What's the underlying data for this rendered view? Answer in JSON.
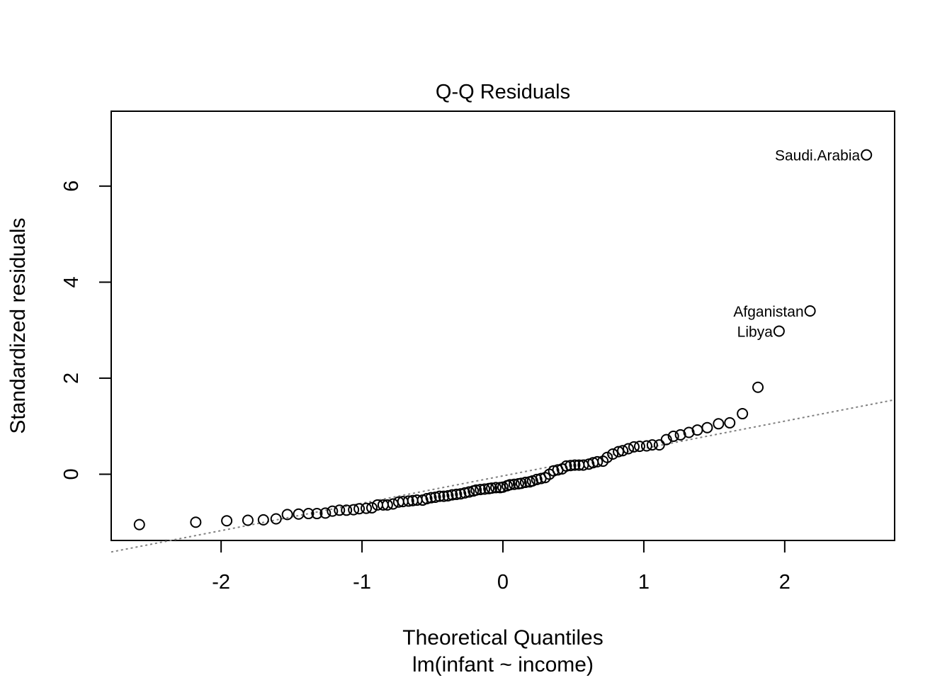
{
  "chart_data": {
    "type": "scatter",
    "title": "Q-Q Residuals",
    "xlabel": "Theoretical Quantiles",
    "subtitle": "lm(infant ~ income)",
    "ylabel": "Standardized residuals",
    "xlim": [
      -2.78,
      2.78
    ],
    "ylim": [
      -1.38,
      7.56
    ],
    "x_ticks": [
      -2,
      -1,
      0,
      1,
      2
    ],
    "y_ticks": [
      0,
      2,
      4,
      6
    ],
    "reference_line": {
      "style": "dotted",
      "color": "#808080",
      "x": [
        -2.78,
        2.78
      ],
      "y": [
        -1.62,
        1.55
      ]
    },
    "points": [
      [
        -2.58,
        -1.05
      ],
      [
        -2.18,
        -1.0
      ],
      [
        -1.96,
        -0.97
      ],
      [
        -1.81,
        -0.96
      ],
      [
        -1.7,
        -0.95
      ],
      [
        -1.61,
        -0.93
      ],
      [
        -1.53,
        -0.84
      ],
      [
        -1.45,
        -0.83
      ],
      [
        -1.38,
        -0.82
      ],
      [
        -1.32,
        -0.82
      ],
      [
        -1.26,
        -0.81
      ],
      [
        -1.21,
        -0.77
      ],
      [
        -1.16,
        -0.75
      ],
      [
        -1.11,
        -0.75
      ],
      [
        -1.06,
        -0.74
      ],
      [
        -1.02,
        -0.72
      ],
      [
        -0.97,
        -0.71
      ],
      [
        -0.93,
        -0.7
      ],
      [
        -0.89,
        -0.64
      ],
      [
        -0.85,
        -0.64
      ],
      [
        -0.82,
        -0.64
      ],
      [
        -0.78,
        -0.62
      ],
      [
        -0.74,
        -0.58
      ],
      [
        -0.71,
        -0.57
      ],
      [
        -0.67,
        -0.56
      ],
      [
        -0.64,
        -0.55
      ],
      [
        -0.61,
        -0.54
      ],
      [
        -0.57,
        -0.54
      ],
      [
        -0.54,
        -0.51
      ],
      [
        -0.51,
        -0.49
      ],
      [
        -0.48,
        -0.48
      ],
      [
        -0.45,
        -0.46
      ],
      [
        -0.42,
        -0.46
      ],
      [
        -0.39,
        -0.45
      ],
      [
        -0.36,
        -0.43
      ],
      [
        -0.33,
        -0.42
      ],
      [
        -0.3,
        -0.41
      ],
      [
        -0.27,
        -0.39
      ],
      [
        -0.24,
        -0.37
      ],
      [
        -0.21,
        -0.35
      ],
      [
        -0.19,
        -0.33
      ],
      [
        -0.16,
        -0.32
      ],
      [
        -0.13,
        -0.31
      ],
      [
        -0.1,
        -0.3
      ],
      [
        -0.08,
        -0.29
      ],
      [
        -0.05,
        -0.28
      ],
      [
        -0.02,
        -0.28
      ],
      [
        0.0,
        -0.27
      ],
      [
        0.03,
        -0.24
      ],
      [
        0.05,
        -0.22
      ],
      [
        0.08,
        -0.21
      ],
      [
        0.11,
        -0.2
      ],
      [
        0.13,
        -0.19
      ],
      [
        0.16,
        -0.17
      ],
      [
        0.19,
        -0.16
      ],
      [
        0.21,
        -0.14
      ],
      [
        0.24,
        -0.11
      ],
      [
        0.27,
        -0.09
      ],
      [
        0.3,
        -0.07
      ],
      [
        0.33,
        0.0
      ],
      [
        0.36,
        0.07
      ],
      [
        0.39,
        0.09
      ],
      [
        0.42,
        0.11
      ],
      [
        0.45,
        0.17
      ],
      [
        0.48,
        0.18
      ],
      [
        0.51,
        0.19
      ],
      [
        0.54,
        0.19
      ],
      [
        0.57,
        0.19
      ],
      [
        0.61,
        0.21
      ],
      [
        0.64,
        0.24
      ],
      [
        0.67,
        0.26
      ],
      [
        0.71,
        0.27
      ],
      [
        0.74,
        0.35
      ],
      [
        0.78,
        0.42
      ],
      [
        0.82,
        0.47
      ],
      [
        0.85,
        0.49
      ],
      [
        0.89,
        0.53
      ],
      [
        0.93,
        0.57
      ],
      [
        0.97,
        0.58
      ],
      [
        1.02,
        0.59
      ],
      [
        1.06,
        0.61
      ],
      [
        1.11,
        0.61
      ],
      [
        1.16,
        0.72
      ],
      [
        1.21,
        0.79
      ],
      [
        1.26,
        0.82
      ],
      [
        1.32,
        0.87
      ],
      [
        1.38,
        0.92
      ],
      [
        1.45,
        0.97
      ],
      [
        1.53,
        1.05
      ],
      [
        1.61,
        1.07
      ],
      [
        1.7,
        1.26
      ],
      [
        1.81,
        1.81
      ],
      [
        1.96,
        2.98
      ],
      [
        2.18,
        3.4
      ],
      [
        2.58,
        6.65
      ]
    ],
    "labeled_points": [
      {
        "label": "Saudi.Arabia",
        "x": 2.58,
        "y": 6.65
      },
      {
        "label": "Afganistan",
        "x": 2.18,
        "y": 3.4
      },
      {
        "label": "Libya",
        "x": 1.96,
        "y": 2.98
      }
    ]
  }
}
